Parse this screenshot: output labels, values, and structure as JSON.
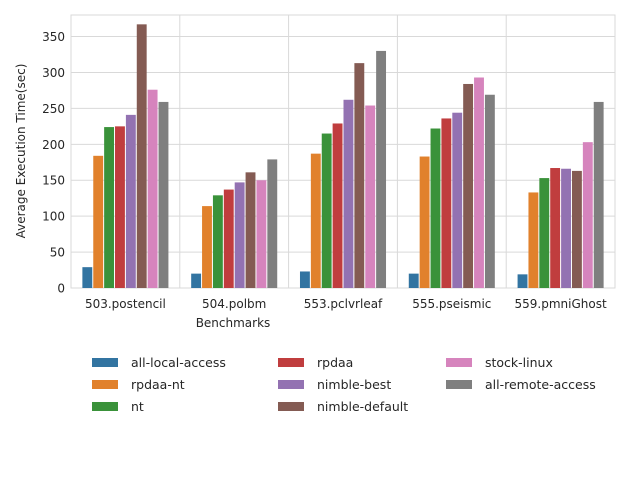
{
  "chart_data": {
    "type": "bar",
    "xlabel": "Benchmarks",
    "ylabel": "Average Execution Time(sec)",
    "ylim": [
      0,
      380
    ],
    "yticks": [
      0,
      50,
      100,
      150,
      200,
      250,
      300,
      350
    ],
    "grid": true,
    "legend_position": "bottom",
    "categories": [
      "503.postencil",
      "504.polbm",
      "553.pclvrleaf",
      "555.pseismic",
      "559.pmniGhost"
    ],
    "series": [
      {
        "name": "all-local-access",
        "color": "#3274a1",
        "values": [
          29,
          20,
          23,
          20,
          19
        ]
      },
      {
        "name": "rpdaa-nt",
        "color": "#e1812c",
        "values": [
          184,
          114,
          187,
          183,
          133
        ]
      },
      {
        "name": "nt",
        "color": "#3a923a",
        "values": [
          224,
          129,
          215,
          222,
          153
        ]
      },
      {
        "name": "rpdaa",
        "color": "#c03d3e",
        "values": [
          225,
          137,
          229,
          236,
          167
        ]
      },
      {
        "name": "nimble-best",
        "color": "#9372b2",
        "values": [
          241,
          147,
          262,
          244,
          166
        ]
      },
      {
        "name": "nimble-default",
        "color": "#845b53",
        "values": [
          367,
          161,
          313,
          284,
          163
        ]
      },
      {
        "name": "stock-linux",
        "color": "#d684bd",
        "values": [
          276,
          150,
          254,
          293,
          203
        ]
      },
      {
        "name": "all-remote-access",
        "color": "#7f7f7f",
        "values": [
          259,
          179,
          330,
          269,
          259
        ]
      }
    ]
  }
}
